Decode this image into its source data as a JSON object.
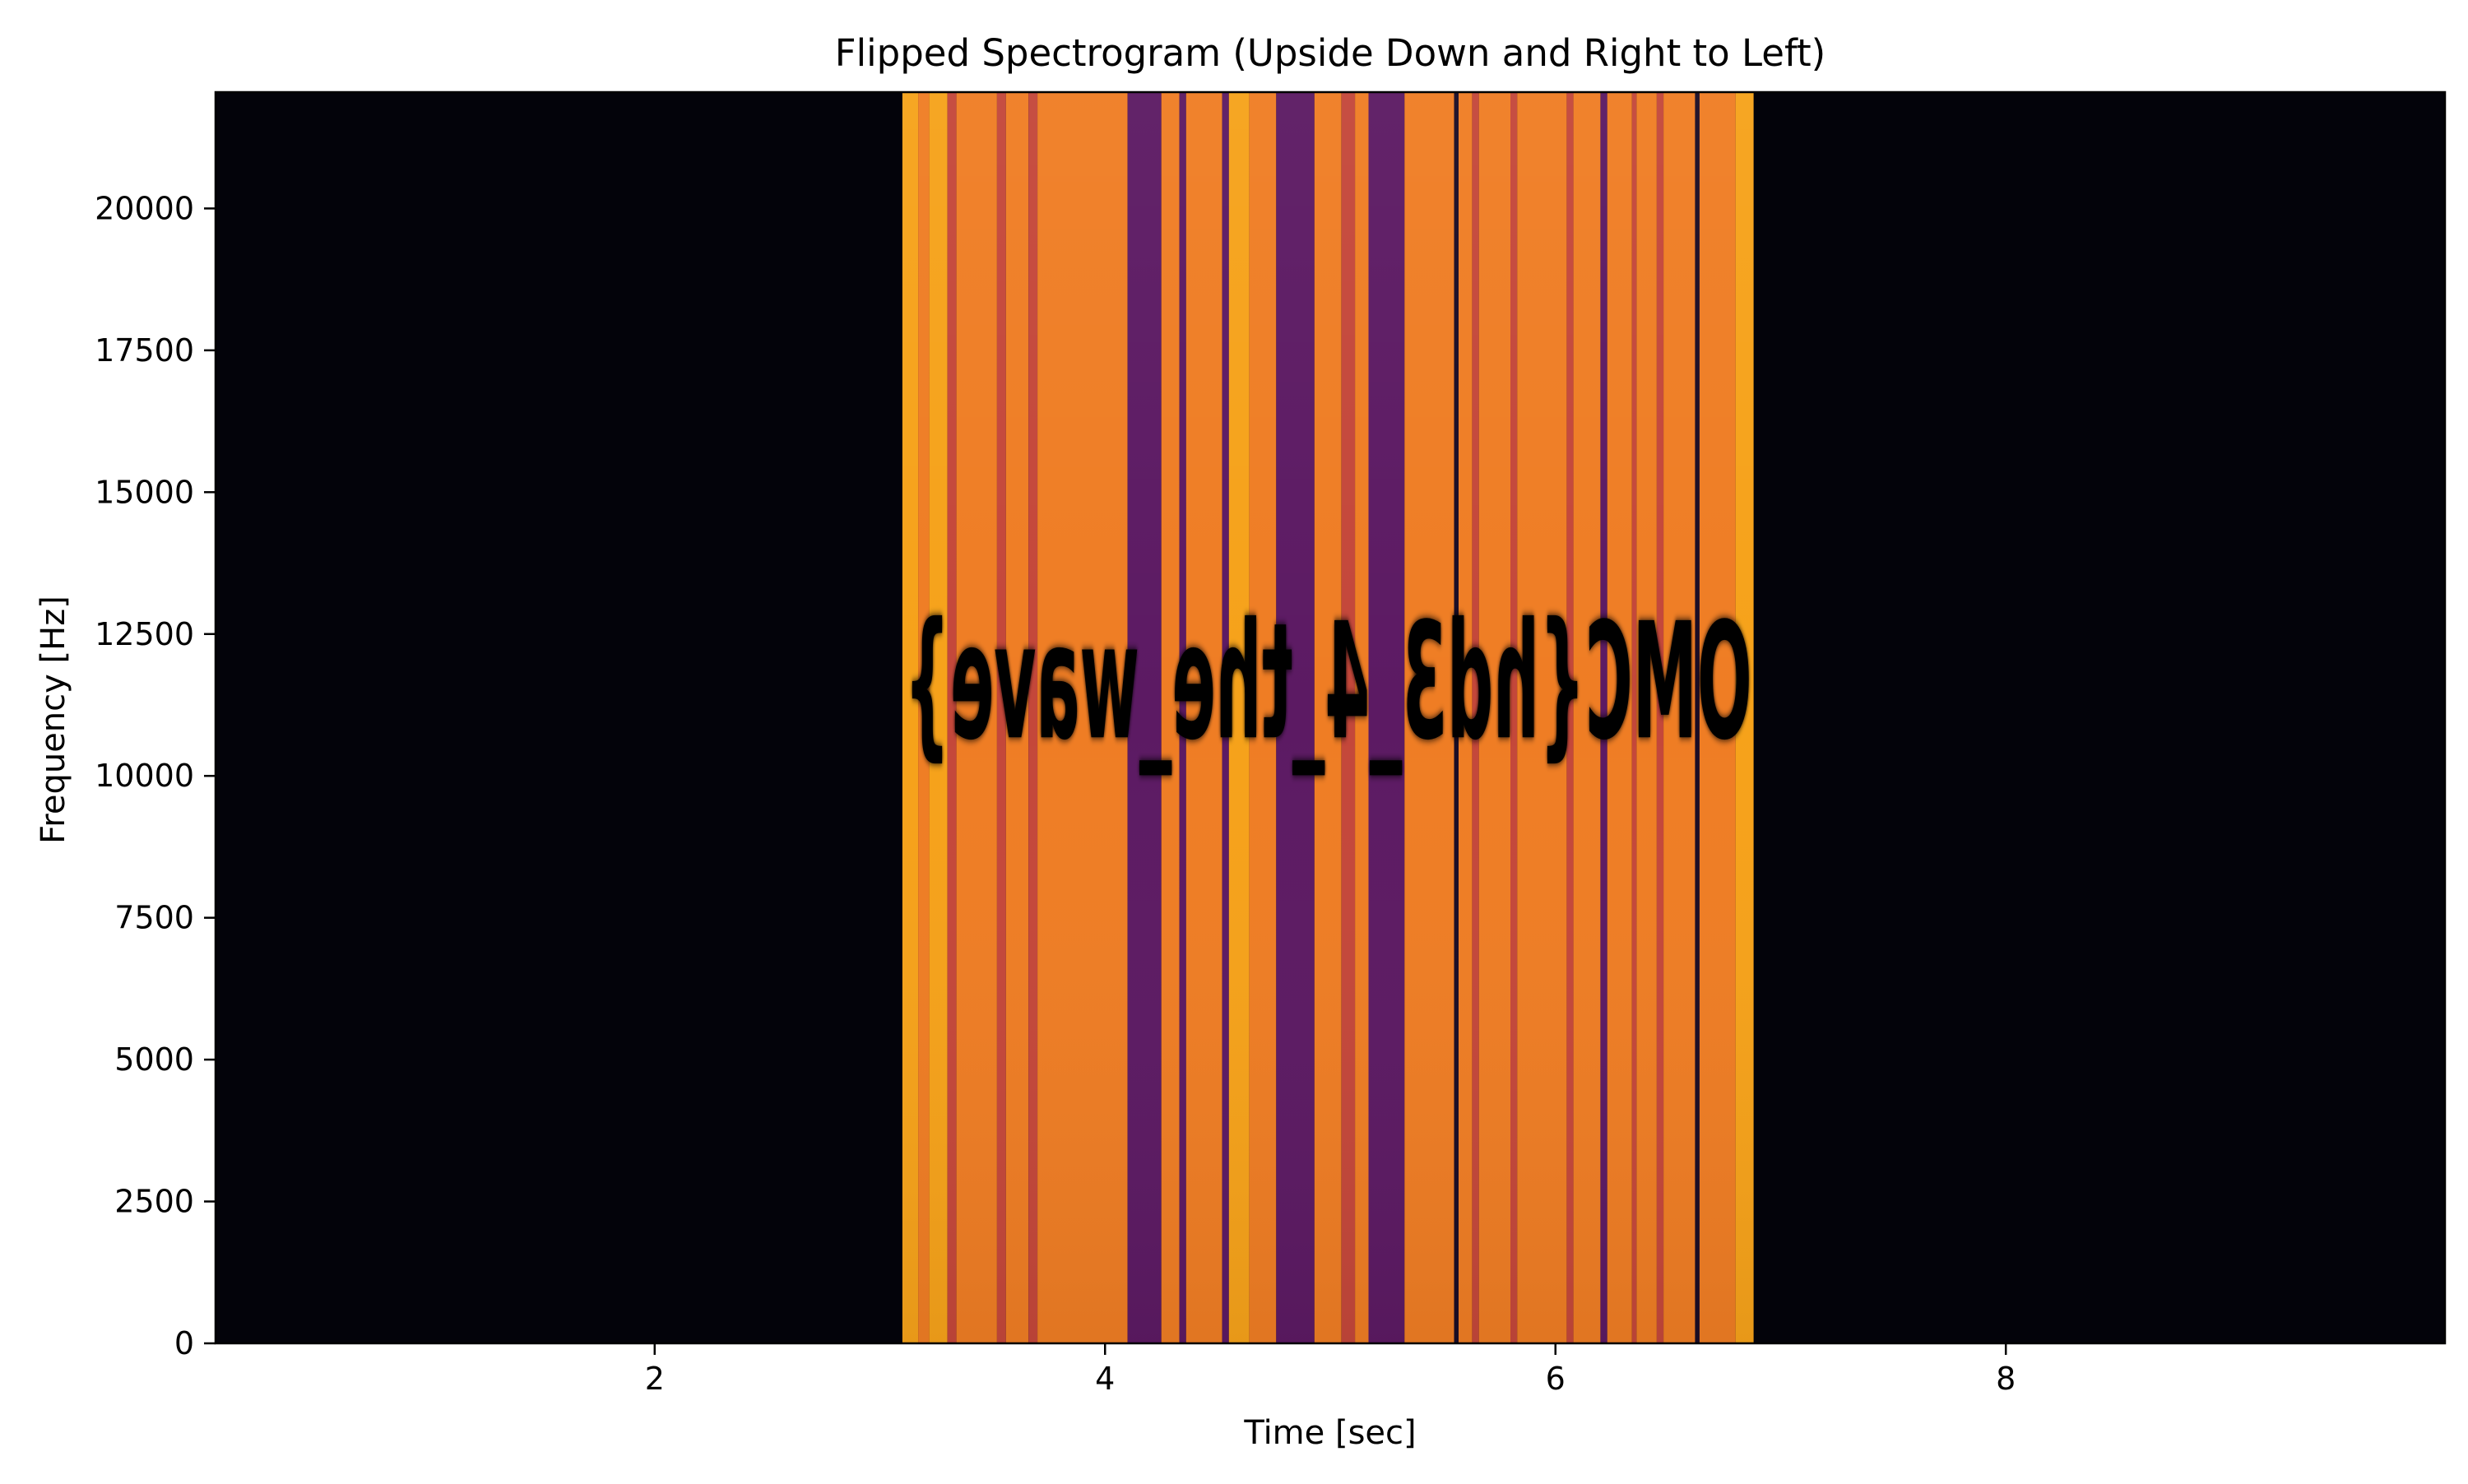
{
  "chart_data": {
    "type": "heatmap",
    "title": "Flipped Spectrogram (Upside Down and Right to Left)",
    "xlabel": "Time [sec]",
    "ylabel": "Frequency [Hz]",
    "xlim": [
      0.05,
      9.95
    ],
    "ylim": [
      0,
      22050
    ],
    "x_ticks": [
      2,
      4,
      6,
      8
    ],
    "x_tick_labels": [
      "2",
      "4",
      "6",
      "8"
    ],
    "y_ticks": [
      0,
      2500,
      5000,
      7500,
      10000,
      12500,
      15000,
      17500,
      20000
    ],
    "y_tick_labels": [
      "0",
      "2500",
      "5000",
      "7500",
      "10000",
      "12500",
      "15000",
      "17500",
      "20000"
    ],
    "colormap": "inferno",
    "background_color": "#03030a",
    "grid": false,
    "signal_region": {
      "t_start": 3.1,
      "t_end": 6.88,
      "f_min": 0,
      "f_max": 22050
    },
    "embedded_text": {
      "text": "OMC{hd3_4_the_wave}",
      "rendering": "mirrored horizontally",
      "f_min": 10000,
      "f_max": 13300,
      "color": "#fbe96a"
    },
    "bands": [
      {
        "t0": 3.1,
        "t1": 3.17,
        "level": "bright"
      },
      {
        "t0": 3.17,
        "t1": 3.22,
        "level": "high"
      },
      {
        "t0": 3.22,
        "t1": 3.3,
        "level": "bright"
      },
      {
        "t0": 3.3,
        "t1": 3.34,
        "level": "mid"
      },
      {
        "t0": 3.34,
        "t1": 3.52,
        "level": "high"
      },
      {
        "t0": 3.52,
        "t1": 3.56,
        "level": "mid"
      },
      {
        "t0": 3.56,
        "t1": 3.66,
        "level": "high"
      },
      {
        "t0": 3.66,
        "t1": 3.7,
        "level": "mid"
      },
      {
        "t0": 3.7,
        "t1": 4.1,
        "level": "high"
      },
      {
        "t0": 4.1,
        "t1": 4.25,
        "level": "low"
      },
      {
        "t0": 4.25,
        "t1": 4.33,
        "level": "high"
      },
      {
        "t0": 4.33,
        "t1": 4.36,
        "level": "low"
      },
      {
        "t0": 4.36,
        "t1": 4.52,
        "level": "high"
      },
      {
        "t0": 4.52,
        "t1": 4.55,
        "level": "low"
      },
      {
        "t0": 4.55,
        "t1": 4.64,
        "level": "bright"
      },
      {
        "t0": 4.64,
        "t1": 4.76,
        "level": "high"
      },
      {
        "t0": 4.76,
        "t1": 4.93,
        "level": "low"
      },
      {
        "t0": 4.93,
        "t1": 5.05,
        "level": "high"
      },
      {
        "t0": 5.05,
        "t1": 5.11,
        "level": "mid"
      },
      {
        "t0": 5.11,
        "t1": 5.17,
        "level": "high"
      },
      {
        "t0": 5.17,
        "t1": 5.33,
        "level": "low"
      },
      {
        "t0": 5.33,
        "t1": 5.55,
        "level": "high"
      },
      {
        "t0": 5.55,
        "t1": 5.57,
        "level": "dark"
      },
      {
        "t0": 5.57,
        "t1": 5.63,
        "level": "high"
      },
      {
        "t0": 5.63,
        "t1": 5.66,
        "level": "mid"
      },
      {
        "t0": 5.66,
        "t1": 5.8,
        "level": "high"
      },
      {
        "t0": 5.8,
        "t1": 5.83,
        "level": "mid"
      },
      {
        "t0": 5.83,
        "t1": 6.05,
        "level": "high"
      },
      {
        "t0": 6.05,
        "t1": 6.08,
        "level": "mid"
      },
      {
        "t0": 6.08,
        "t1": 6.2,
        "level": "high"
      },
      {
        "t0": 6.2,
        "t1": 6.23,
        "level": "low"
      },
      {
        "t0": 6.23,
        "t1": 6.34,
        "level": "high"
      },
      {
        "t0": 6.34,
        "t1": 6.36,
        "level": "mid"
      },
      {
        "t0": 6.36,
        "t1": 6.45,
        "level": "high"
      },
      {
        "t0": 6.45,
        "t1": 6.48,
        "level": "mid"
      },
      {
        "t0": 6.48,
        "t1": 6.62,
        "level": "high"
      },
      {
        "t0": 6.62,
        "t1": 6.64,
        "level": "dark"
      },
      {
        "t0": 6.64,
        "t1": 6.8,
        "level": "high"
      },
      {
        "t0": 6.8,
        "t1": 6.88,
        "level": "bright"
      }
    ],
    "level_colors": {
      "bright": "#f6a21a",
      "high": "#ef7d24",
      "mid": "#c4473a",
      "low": "#5c1a63",
      "dark": "#1a0c26"
    }
  }
}
